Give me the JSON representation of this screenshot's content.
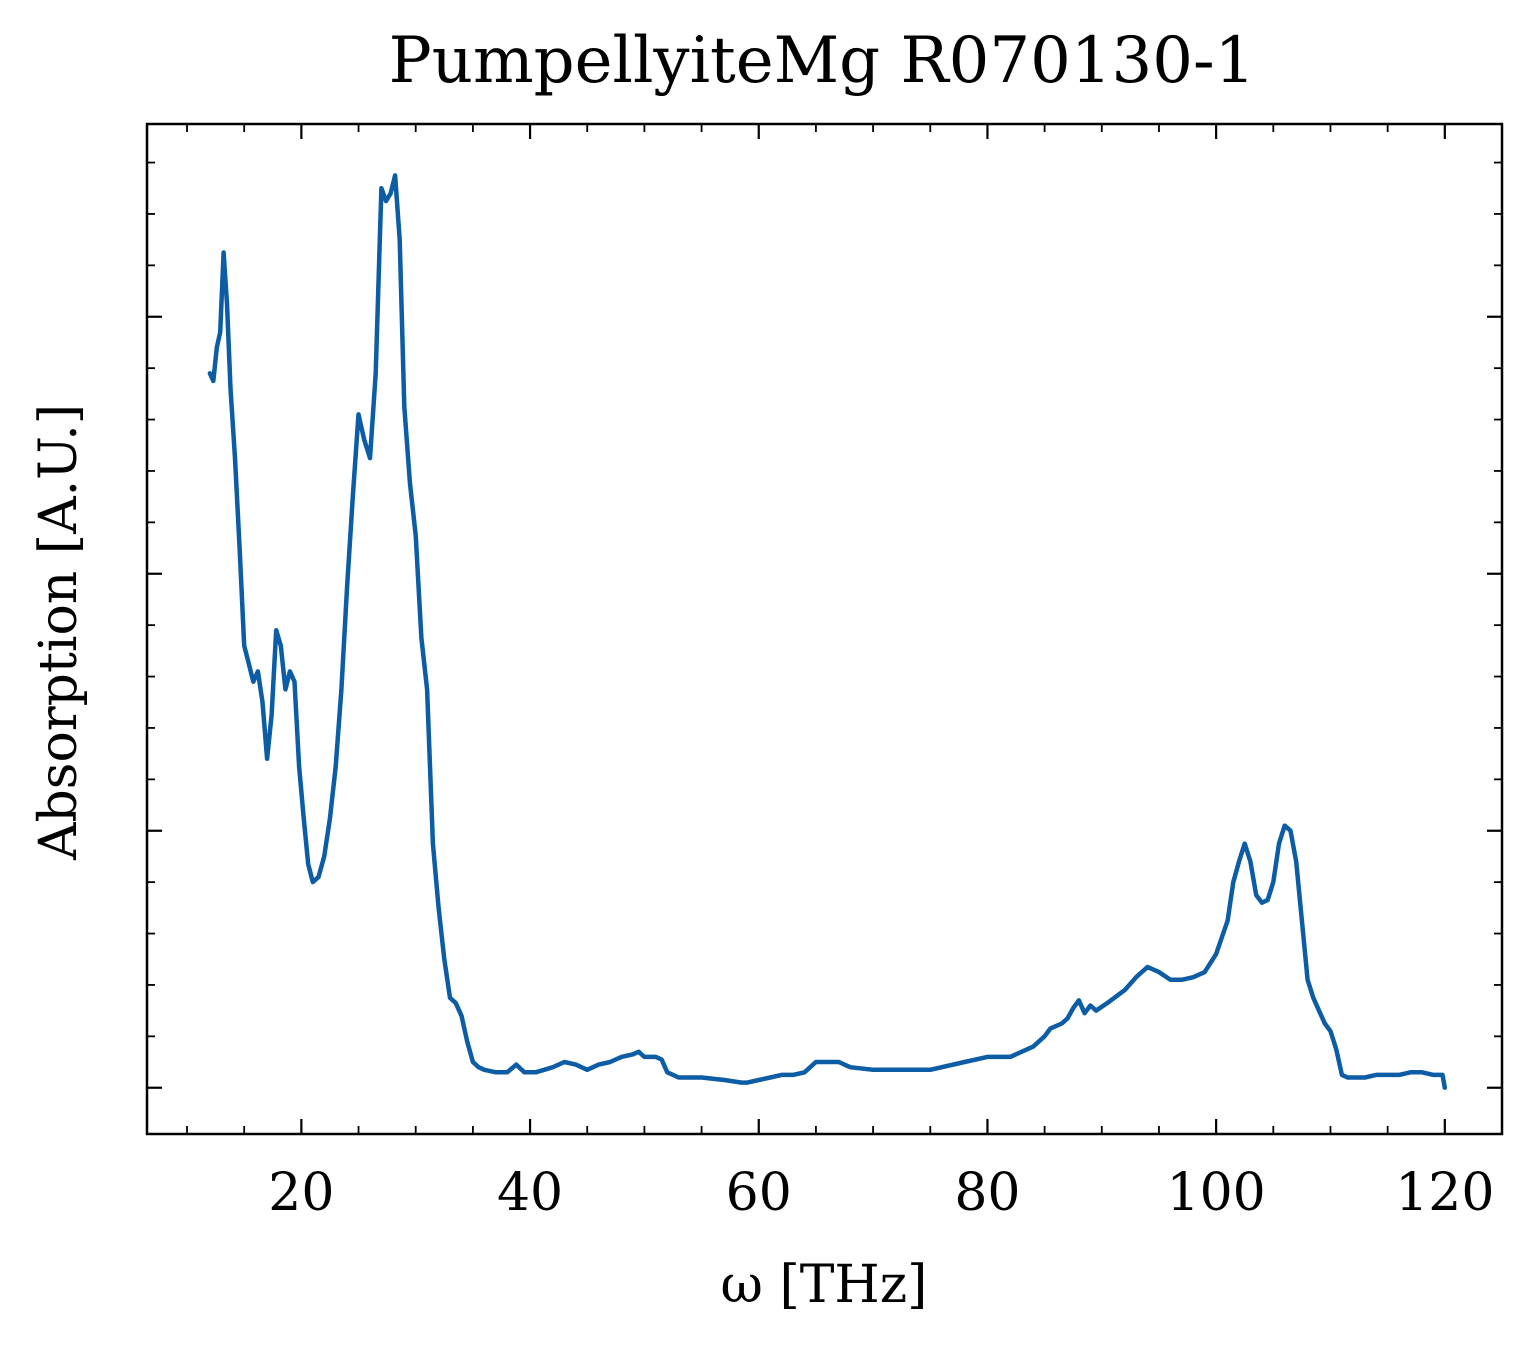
{
  "colors": {
    "series": "#0C5DA5",
    "axes": "#000000",
    "background": "#ffffff"
  },
  "chart_data": {
    "type": "line",
    "title": "PumpellyiteMg R070130-1",
    "xlabel": "ω [THz]",
    "ylabel": "Absorption [A.U.]",
    "xlim": [
      6.5,
      125
    ],
    "ylim": [
      -0.18,
      3.75
    ],
    "x_ticks": [
      20,
      40,
      60,
      80,
      100,
      120
    ],
    "x_tick_labels": [
      "20",
      "40",
      "60",
      "80",
      "100",
      "120"
    ],
    "x_minor_step": 5,
    "y_ticks": [
      0,
      1,
      2,
      3
    ],
    "y_minor_step": 0.2,
    "y_tick_labels_shown": false,
    "grid": false,
    "legend": "none",
    "series": [
      {
        "x": [
          12.0,
          12.3,
          12.6,
          12.9,
          13.2,
          13.5,
          13.8,
          14.2,
          14.6,
          15.0,
          15.4,
          15.8,
          16.2,
          16.6,
          17.0,
          17.4,
          17.8,
          18.2,
          18.6,
          19.0,
          19.4,
          19.8,
          20.2,
          20.6,
          21.0,
          21.5,
          22.0,
          22.5,
          23.0,
          23.5,
          24.0,
          24.5,
          25.0,
          25.5,
          26.0,
          26.5,
          27.0,
          27.4,
          27.8,
          28.2,
          28.6,
          29.0,
          29.5,
          30.0,
          30.5,
          31.0,
          31.5,
          32.0,
          32.5,
          33.0,
          33.5,
          34.0,
          34.5,
          35.0,
          35.5,
          36.0,
          37.0,
          38.0,
          38.8,
          39.5,
          40.5,
          42.0,
          43.0,
          44.0,
          45.0,
          46.0,
          47.0,
          48.0,
          49.0,
          49.5,
          50.0,
          51.0,
          51.5,
          52.0,
          53.0,
          55.0,
          57.0,
          58.5,
          59.0,
          60.0,
          61.0,
          62.0,
          63.0,
          64.0,
          65.0,
          66.0,
          67.0,
          68.0,
          70.0,
          72.0,
          75.0,
          78.0,
          80.0,
          82.0,
          84.0,
          85.0,
          85.5,
          86.5,
          87.0,
          87.5,
          88.0,
          88.5,
          89.0,
          89.5,
          90.5,
          92.0,
          93.0,
          94.0,
          95.0,
          96.0,
          97.0,
          98.0,
          99.0,
          100.0,
          101.0,
          101.5,
          102.0,
          102.5,
          103.0,
          103.5,
          104.0,
          104.5,
          105.0,
          105.5,
          106.0,
          106.5,
          107.0,
          107.5,
          108.0,
          108.5,
          109.0,
          109.5,
          110.0,
          110.5,
          111.0,
          111.5,
          112.0,
          113.0,
          114.0,
          115.0,
          116.0,
          117.0,
          118.0,
          119.0,
          119.8,
          120.0
        ],
        "values": [
          2.78,
          2.75,
          2.88,
          2.94,
          3.25,
          3.05,
          2.72,
          2.45,
          2.1,
          1.72,
          1.65,
          1.58,
          1.62,
          1.5,
          1.28,
          1.45,
          1.78,
          1.72,
          1.55,
          1.62,
          1.58,
          1.25,
          1.05,
          0.87,
          0.8,
          0.82,
          0.9,
          1.05,
          1.25,
          1.55,
          1.95,
          2.3,
          2.62,
          2.52,
          2.45,
          2.78,
          3.5,
          3.45,
          3.48,
          3.55,
          3.3,
          2.65,
          2.35,
          2.15,
          1.75,
          1.55,
          0.95,
          0.7,
          0.5,
          0.35,
          0.33,
          0.28,
          0.18,
          0.1,
          0.08,
          0.07,
          0.06,
          0.06,
          0.09,
          0.06,
          0.06,
          0.08,
          0.1,
          0.09,
          0.07,
          0.09,
          0.1,
          0.12,
          0.13,
          0.14,
          0.12,
          0.12,
          0.11,
          0.06,
          0.04,
          0.04,
          0.03,
          0.02,
          0.02,
          0.03,
          0.04,
          0.05,
          0.05,
          0.06,
          0.1,
          0.1,
          0.1,
          0.08,
          0.07,
          0.07,
          0.07,
          0.1,
          0.12,
          0.12,
          0.16,
          0.2,
          0.23,
          0.25,
          0.27,
          0.31,
          0.34,
          0.29,
          0.32,
          0.3,
          0.33,
          0.38,
          0.43,
          0.47,
          0.45,
          0.42,
          0.42,
          0.43,
          0.45,
          0.52,
          0.65,
          0.8,
          0.88,
          0.95,
          0.88,
          0.75,
          0.72,
          0.73,
          0.8,
          0.95,
          1.02,
          1.0,
          0.88,
          0.65,
          0.42,
          0.35,
          0.3,
          0.25,
          0.22,
          0.15,
          0.05,
          0.04,
          0.04,
          0.04,
          0.05,
          0.05,
          0.05,
          0.06,
          0.06,
          0.05,
          0.05,
          0.0
        ]
      }
    ]
  }
}
